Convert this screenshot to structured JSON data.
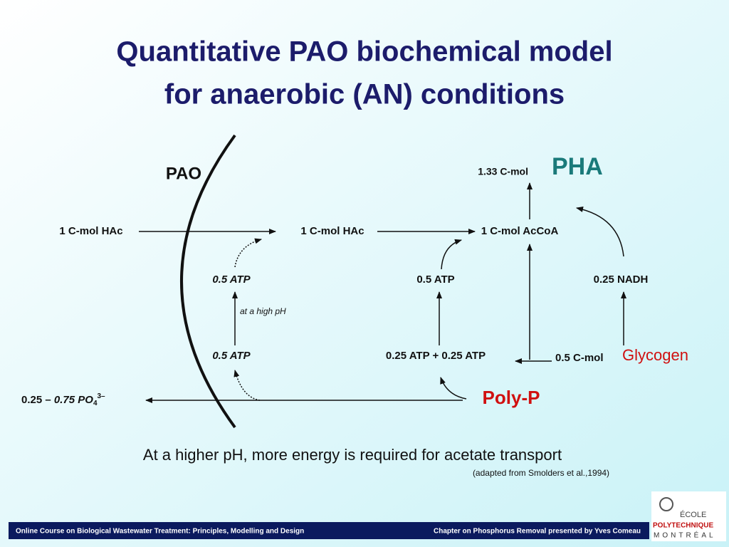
{
  "title": [
    "Quantitative PAO biochemical model",
    "for anaerobic (AN) conditions"
  ],
  "nodes": {
    "pao": "PAO",
    "pha_amount": "1.33 C-mol",
    "pha": "PHA",
    "hac_out": "1 C-mol HAc",
    "hac_in": "1 C-mol HAc",
    "accoa": "1 C-mol AcCoA",
    "atp_transport_top": "0.5 ATP",
    "high_ph_note": "at a high pH",
    "atp_transport_bottom": "0.5 ATP",
    "atp_activation": "0.5 ATP",
    "atp_sum": "0.25 ATP + 0.25 ATP",
    "nadh": "0.25 NADH",
    "glycogen_amount": "0.5 C-mol",
    "glycogen": "Glycogen",
    "polyp": "Poly-P",
    "phosphate": {
      "prefix": "0.25 –",
      "main": "0.75 PO",
      "sub": "4",
      "sup": "3–"
    }
  },
  "caption": "At a higher pH, more energy is required for acetate transport",
  "source": "(adapted from Smolders et al.,1994)",
  "footer": {
    "left": "Online Course on Biological Wastewater Treatment: Principles, Modelling and Design",
    "right": "Chapter on Phosphorus Removal presented by Yves Comeau"
  },
  "logo": [
    "ÉCOLE",
    "POLYTECHNIQUE",
    "MONTRÉAL"
  ]
}
